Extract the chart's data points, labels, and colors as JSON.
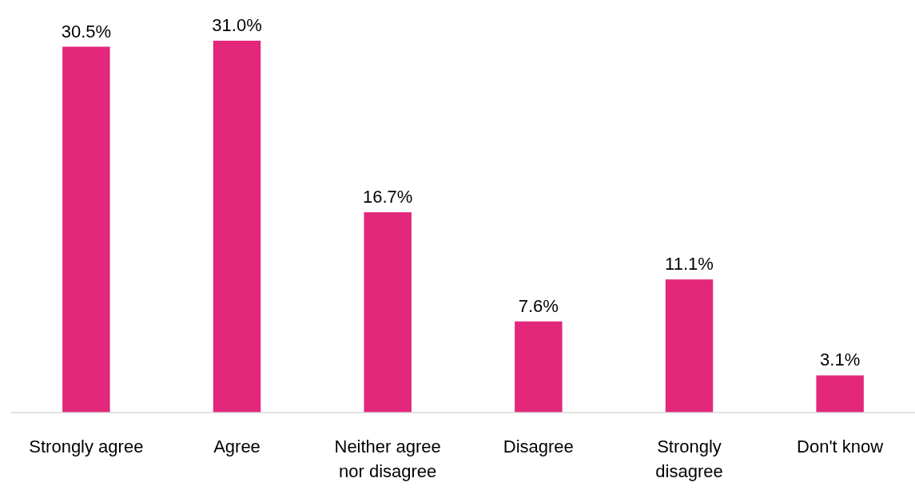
{
  "chart_data": {
    "type": "bar",
    "categories": [
      "Strongly agree",
      "Agree",
      "Neither agree nor disagree",
      "Disagree",
      "Strongly disagree",
      "Don't know"
    ],
    "values": [
      30.5,
      31.0,
      16.7,
      7.6,
      11.1,
      3.1
    ],
    "color": "#e3277b",
    "data_labels": true,
    "value_labels": [
      "30.5%",
      "31.0%",
      "16.7%",
      "7.6%",
      "11.1%",
      "3.1%"
    ]
  }
}
